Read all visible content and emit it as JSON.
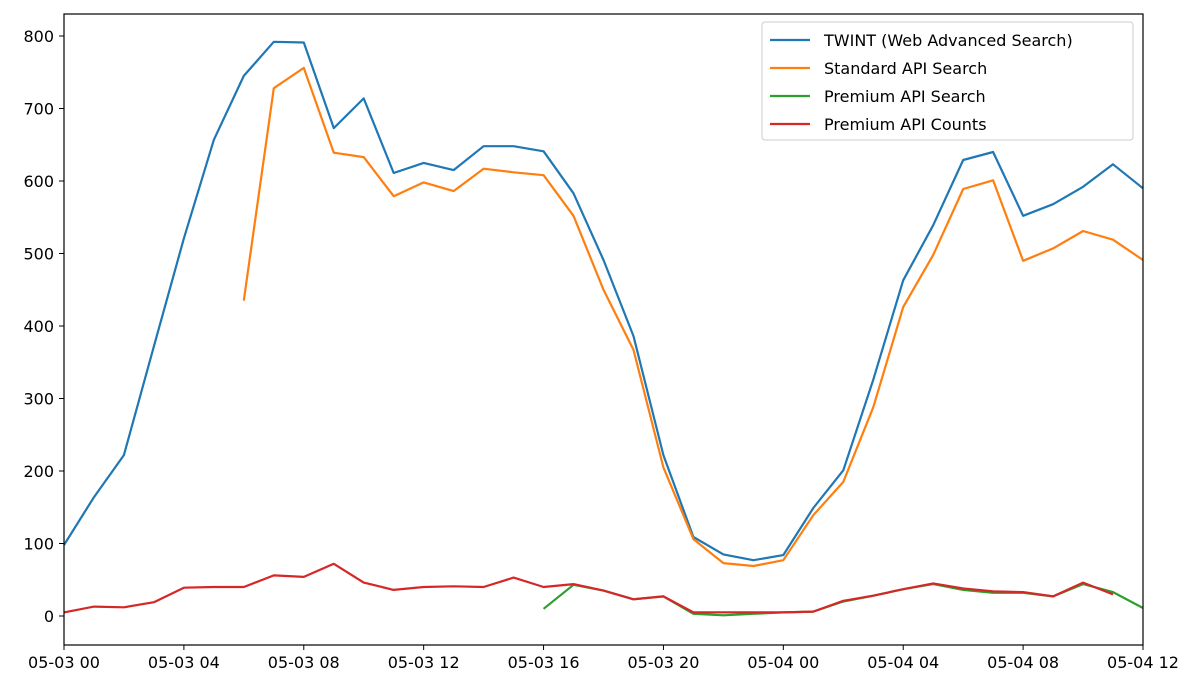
{
  "chart_data": {
    "type": "line",
    "title": "",
    "xlabel": "",
    "ylabel": "",
    "x_unit": "hours since 05-03 00",
    "xlim": [
      0,
      36
    ],
    "ylim": [
      -40,
      830
    ],
    "grid": false,
    "legend_placement": "top-right",
    "x_ticks": [
      0,
      4,
      8,
      12,
      16,
      20,
      24,
      28,
      32,
      36
    ],
    "x_tick_labels": [
      "05-03 00",
      "05-03 04",
      "05-03 08",
      "05-03 12",
      "05-03 16",
      "05-03 20",
      "05-04 00",
      "05-04 04",
      "05-04 08",
      "05-04 12"
    ],
    "y_ticks": [
      0,
      100,
      200,
      300,
      400,
      500,
      600,
      700,
      800
    ],
    "y_tick_labels": [
      "0",
      "100",
      "200",
      "300",
      "400",
      "500",
      "600",
      "700",
      "800"
    ],
    "series": [
      {
        "name": "TWINT (Web Advanced Search)",
        "color": "#1f77b4",
        "x_start": 0,
        "values": [
          98,
          164,
          222,
          372,
          521,
          657,
          745,
          792,
          791,
          673,
          714,
          611,
          625,
          615,
          648,
          648,
          641,
          583,
          491,
          386,
          222,
          109,
          85,
          77,
          84,
          149,
          201,
          326,
          463,
          539,
          629,
          640,
          552,
          568,
          592,
          623,
          590
        ]
      },
      {
        "name": "Standard API Search",
        "color": "#ff7f0e",
        "x_start": 6,
        "values": [
          435,
          728,
          756,
          639,
          633,
          579,
          598,
          586,
          617,
          612,
          608,
          552,
          450,
          367,
          205,
          106,
          73,
          69,
          77,
          139,
          185,
          288,
          426,
          498,
          589,
          601,
          490,
          507,
          531,
          519,
          491
        ]
      },
      {
        "name": "Premium API Search",
        "color": "#2ca02c",
        "x_start": 16,
        "values": [
          10,
          43,
          35,
          23,
          27,
          3,
          1,
          3,
          5,
          6,
          20,
          28,
          37,
          44,
          36,
          32,
          32,
          27,
          44,
          33,
          11
        ]
      },
      {
        "name": "Premium API Counts",
        "color": "#d62728",
        "x_start": 0,
        "values": [
          5,
          13,
          12,
          19,
          39,
          40,
          40,
          56,
          54,
          72,
          46,
          36,
          40,
          41,
          40,
          53,
          40,
          44,
          35,
          23,
          27,
          5,
          5,
          5,
          5,
          6,
          21,
          28,
          37,
          45,
          38,
          34,
          33,
          27,
          46,
          30
        ]
      }
    ]
  }
}
